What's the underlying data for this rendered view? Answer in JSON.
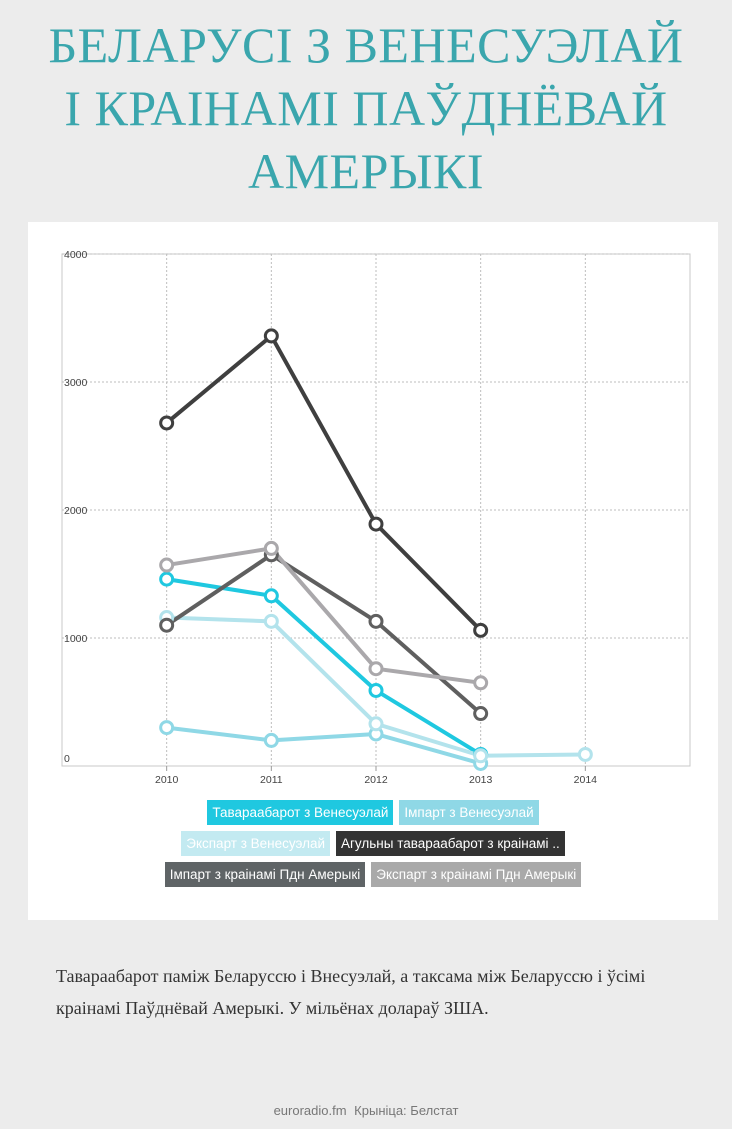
{
  "title_lines": [
    "БЕЛАРУСІ З ВЕНЕСУЭЛАЙ",
    "І КРАІНАМІ ПАЎДНЁВАЙ",
    "АМЕРЫКІ"
  ],
  "caption": "Тавараабарот паміж Беларуссю і Внесуэлай, а таксама між Беларуссю і ўсімі краінамі Паўднёвай Амерыкі. У мільёнах долараў ЗША.",
  "source": {
    "site": "euroradio.fm",
    "credit": "Крыніца: Белстат"
  },
  "colors": {
    "title": "#3aa6ad",
    "background": "#ececec",
    "card": "#ffffff"
  },
  "chart_data": {
    "type": "line",
    "x": [
      2010,
      2011,
      2012,
      2013
    ],
    "x_ticks": [
      "2010",
      "2011",
      "2012",
      "2013",
      "2014"
    ],
    "y_ticks": [
      "0",
      "1000",
      "2000",
      "3000",
      "4000"
    ],
    "xlim": [
      2009,
      2015
    ],
    "ylim": [
      0,
      4000
    ],
    "grid": true,
    "legend_position": "bottom",
    "series": [
      {
        "name": "Тавараабарот з Венесуэлай",
        "color": "#1fc8e0",
        "values": [
          1460,
          1330,
          590,
          90
        ],
        "label_bg": "#1fc8e0",
        "label_fg": "#ffffff"
      },
      {
        "name": "Імпарт з Венесуэлай",
        "color": "#8fd8e6",
        "values": [
          300,
          200,
          250,
          20
        ],
        "label_bg": "#8fd8e6",
        "label_fg": "#ffffff"
      },
      {
        "name": "Экспарт з Венесуэлай",
        "color": "#b3e3ec",
        "values": [
          1160,
          1130,
          330,
          80,
          90
        ],
        "x": [
          2010,
          2011,
          2012,
          2013,
          2014
        ],
        "label_bg": "#c3eaf1",
        "label_fg": "#ffffff"
      },
      {
        "name": "Агульны тавараабарот з краінамі ..",
        "color": "#3f3f3f",
        "values": [
          2680,
          3360,
          1890,
          1060
        ],
        "label_bg": "#333333",
        "label_fg": "#ffffff"
      },
      {
        "name": "Імпарт з краінамі Пдн Амерыкі",
        "color": "#5f5f5f",
        "values": [
          1100,
          1650,
          1130,
          410
        ],
        "label_bg": "#5f6466",
        "label_fg": "#ffffff"
      },
      {
        "name": "Экспарт з краінамі Пдн Амерыкі",
        "color": "#aaa8ab",
        "values": [
          1570,
          1700,
          760,
          650
        ],
        "label_bg": "#a9a9a9",
        "label_fg": "#ffffff"
      }
    ]
  }
}
